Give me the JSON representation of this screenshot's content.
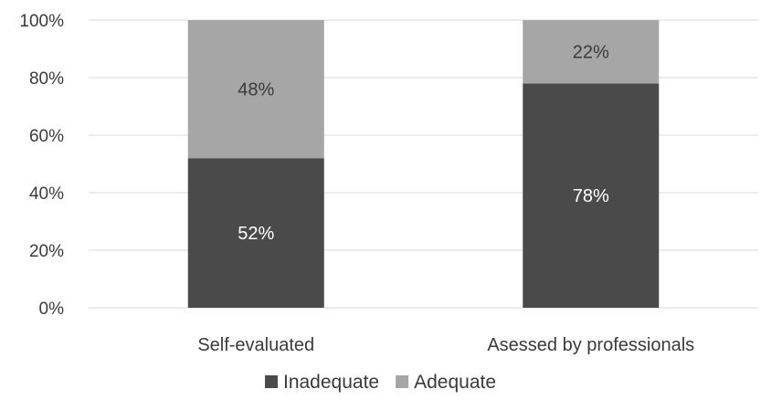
{
  "chart_data": {
    "type": "bar",
    "stacked": true,
    "percent_stacked": true,
    "categories": [
      "Self-evaluated",
      "Asessed by professionals"
    ],
    "series": [
      {
        "name": "Inadequate",
        "values": [
          52,
          78
        ],
        "labels": [
          "52%",
          "78%"
        ],
        "color": "#4a4a4a",
        "label_color": "#ffffff"
      },
      {
        "name": "Adequate",
        "values": [
          48,
          22
        ],
        "labels": [
          "48%",
          "22%"
        ],
        "color": "#a6a6a6",
        "label_color": "#3a3a3a"
      }
    ],
    "ylim": [
      0,
      100
    ],
    "yticks": [
      0,
      20,
      40,
      60,
      80,
      100
    ],
    "ytick_labels": [
      "0%",
      "20%",
      "40%",
      "60%",
      "80%",
      "100%"
    ],
    "title": "",
    "xlabel": "",
    "ylabel": "",
    "grid": true,
    "gridline_color": "#d9d9d9",
    "legend_position": "bottom"
  }
}
